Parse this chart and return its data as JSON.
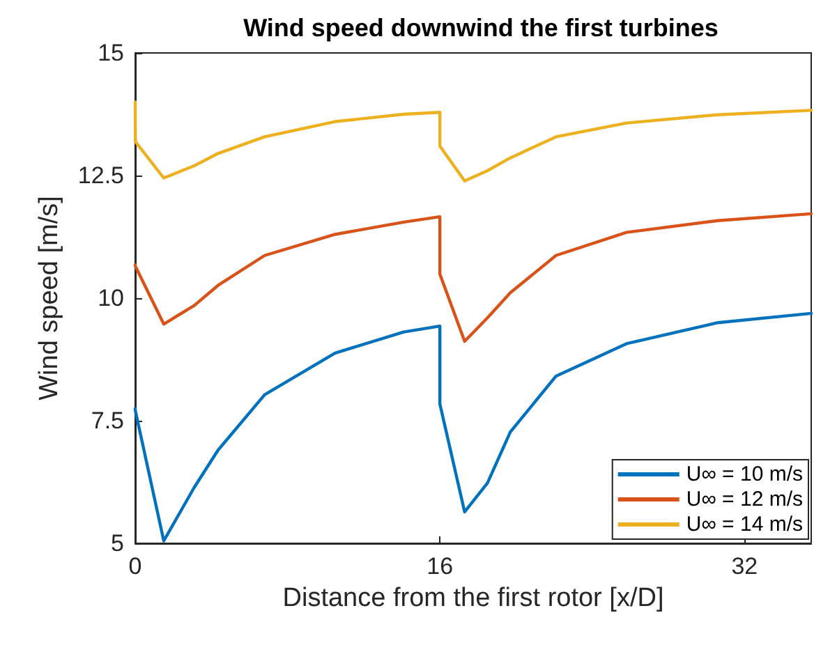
{
  "chart_data": {
    "type": "line",
    "title": "Wind speed downwind the first turbines",
    "xlabel": "Distance from the first rotor [x/D]",
    "ylabel": "Wind speed [m/s]",
    "x": [
      0,
      0.01,
      1.5,
      3.1,
      4.35,
      6.8,
      10.5,
      14.1,
      16,
      16,
      17.3,
      18.5,
      19.7,
      22.1,
      25.8,
      30.6,
      35.5
    ],
    "series": [
      {
        "name": "U∞ = 10 m/s",
        "color": "#0072bd",
        "values": [
          7.75,
          7.7,
          5.05,
          6.14,
          6.9,
          8.03,
          8.88,
          9.31,
          9.43,
          7.84,
          5.64,
          6.23,
          7.27,
          8.41,
          9.07,
          9.5,
          9.69
        ]
      },
      {
        "name": "U∞ = 12 m/s",
        "color": "#d95319",
        "values": [
          10.68,
          10.65,
          9.47,
          9.85,
          10.26,
          10.87,
          11.3,
          11.55,
          11.66,
          10.49,
          9.12,
          9.6,
          10.11,
          10.87,
          11.34,
          11.58,
          11.72
        ]
      },
      {
        "name": "U∞ = 14 m/s",
        "color": "#edb120",
        "values": [
          14.0,
          13.19,
          12.45,
          12.7,
          12.95,
          13.29,
          13.6,
          13.75,
          13.79,
          13.1,
          12.39,
          12.6,
          12.86,
          13.29,
          13.57,
          13.74,
          13.83
        ]
      }
    ],
    "xlim": [
      0,
      35.5
    ],
    "xticks": [
      0,
      16,
      32
    ],
    "ylim": [
      5,
      15
    ],
    "yticks": [
      5,
      7.5,
      10,
      12.5,
      15
    ],
    "legend": "bottom right",
    "grid": false,
    "marker": "none",
    "line_style": "solid"
  }
}
